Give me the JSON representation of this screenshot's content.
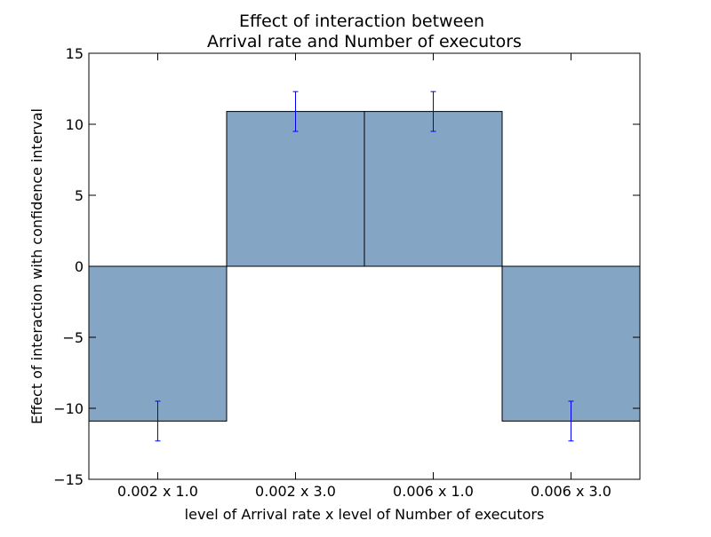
{
  "chart_data": {
    "type": "bar",
    "title_lines": [
      "Effect of interaction between",
      "Arrival rate and Number of executors"
    ],
    "xlabel": "level of Arrival rate x level of Number of executors",
    "ylabel": "Effect of interaction with confidence interval",
    "categories": [
      "0.002 x 1.0",
      "0.002 x 3.0",
      "0.006 x 1.0",
      "0.006 x 3.0"
    ],
    "values": [
      -10.9,
      10.9,
      10.9,
      -10.9
    ],
    "error": [
      1.4,
      1.4,
      1.4,
      1.4
    ],
    "ylim": [
      -15,
      15
    ],
    "yticks": [
      -15,
      -10,
      -5,
      0,
      5,
      10,
      15
    ],
    "ytick_labels": [
      "−15",
      "−10",
      "−5",
      "0",
      "5",
      "10",
      "15"
    ],
    "bar_color": "#84a5c3",
    "error_color": "#0000ff",
    "grid": false,
    "legend": "none"
  }
}
